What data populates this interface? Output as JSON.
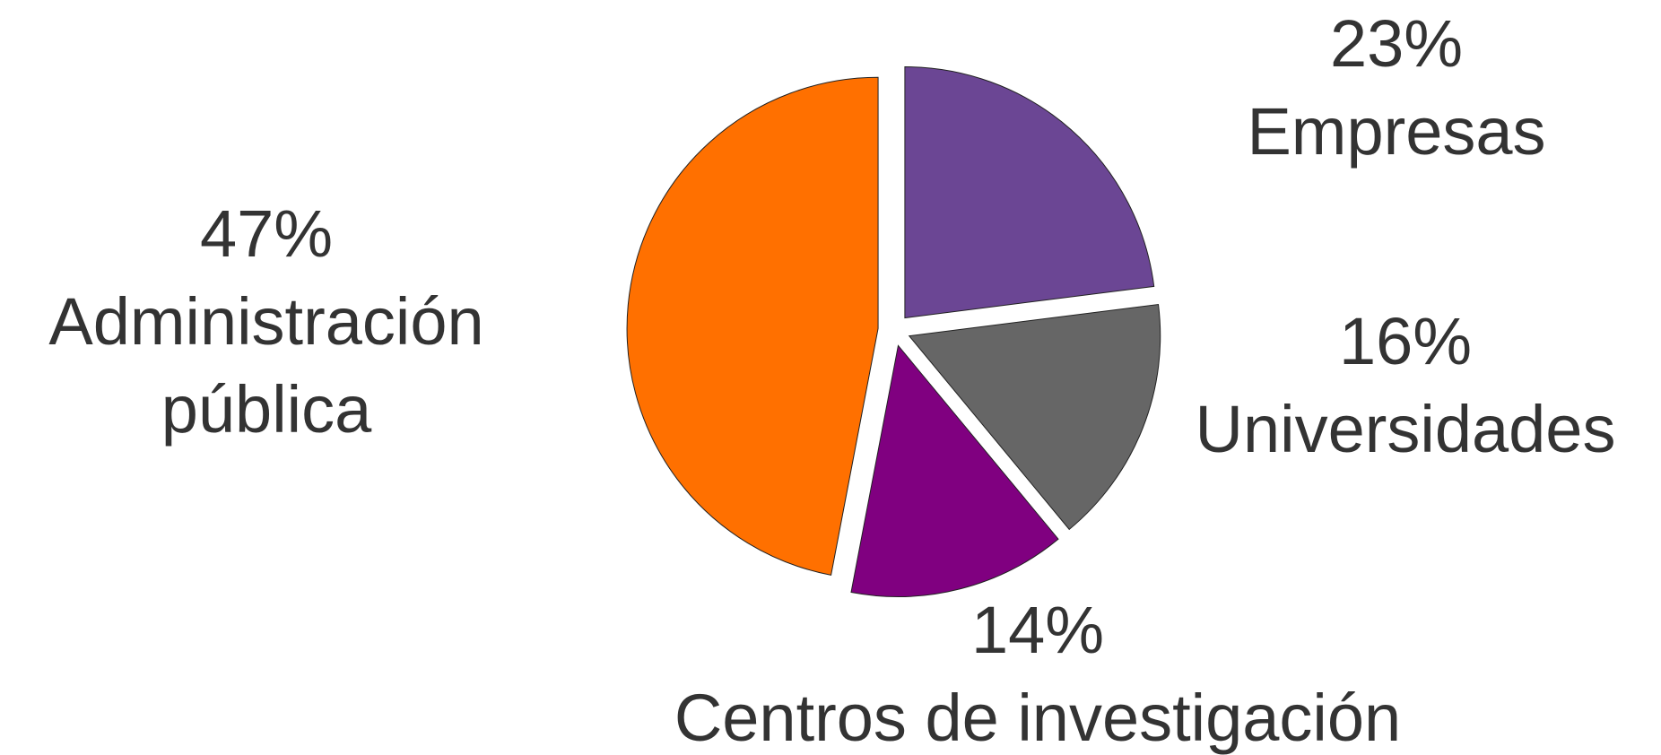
{
  "chart_data": {
    "type": "pie",
    "categories": [
      "Empresas",
      "Universidades",
      "Centros de investigación",
      "Administración pública"
    ],
    "values": [
      23,
      16,
      14,
      47
    ],
    "value_labels": [
      "23%",
      "16%",
      "14%",
      "47%"
    ],
    "colors": [
      "#6b4694",
      "#666666",
      "#800080",
      "#ff7000"
    ]
  }
}
